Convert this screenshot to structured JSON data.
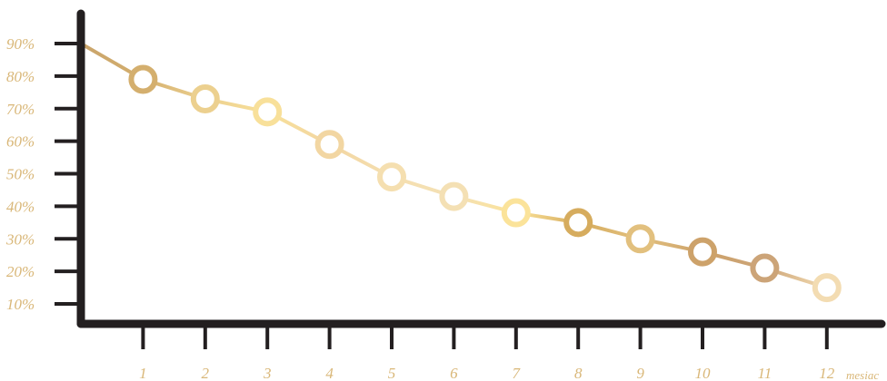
{
  "chart_data": {
    "type": "line",
    "title": "",
    "xlabel": "mesiac",
    "ylabel": "",
    "grid": false,
    "x": [
      0,
      1,
      2,
      3,
      4,
      5,
      6,
      7,
      8,
      9,
      10,
      11,
      12
    ],
    "x_ticks": [
      "1",
      "2",
      "3",
      "4",
      "5",
      "6",
      "7",
      "8",
      "9",
      "10",
      "11",
      "12"
    ],
    "y_ticks": [
      "10%",
      "20%",
      "30%",
      "40%",
      "50%",
      "60%",
      "70%",
      "80%",
      "90%"
    ],
    "ylim": [
      1,
      100
    ],
    "series": [
      {
        "values": [
          90,
          79,
          73,
          69,
          59,
          49,
          43,
          38,
          35,
          30,
          26,
          21,
          15
        ],
        "markers_from_index": 1
      }
    ],
    "colors": {
      "axis": "#231f20",
      "tick_text": "#d9b778",
      "points": [
        "#c9a46b",
        "#d4af6e",
        "#ecd08f",
        "#f8e09a",
        "#f2d6a2",
        "#f5dfb0",
        "#f4e0b4",
        "#fbe39a",
        "#d6ac5e",
        "#e2c07e",
        "#cda26a",
        "#cca478",
        "#f3dcb2"
      ]
    }
  }
}
